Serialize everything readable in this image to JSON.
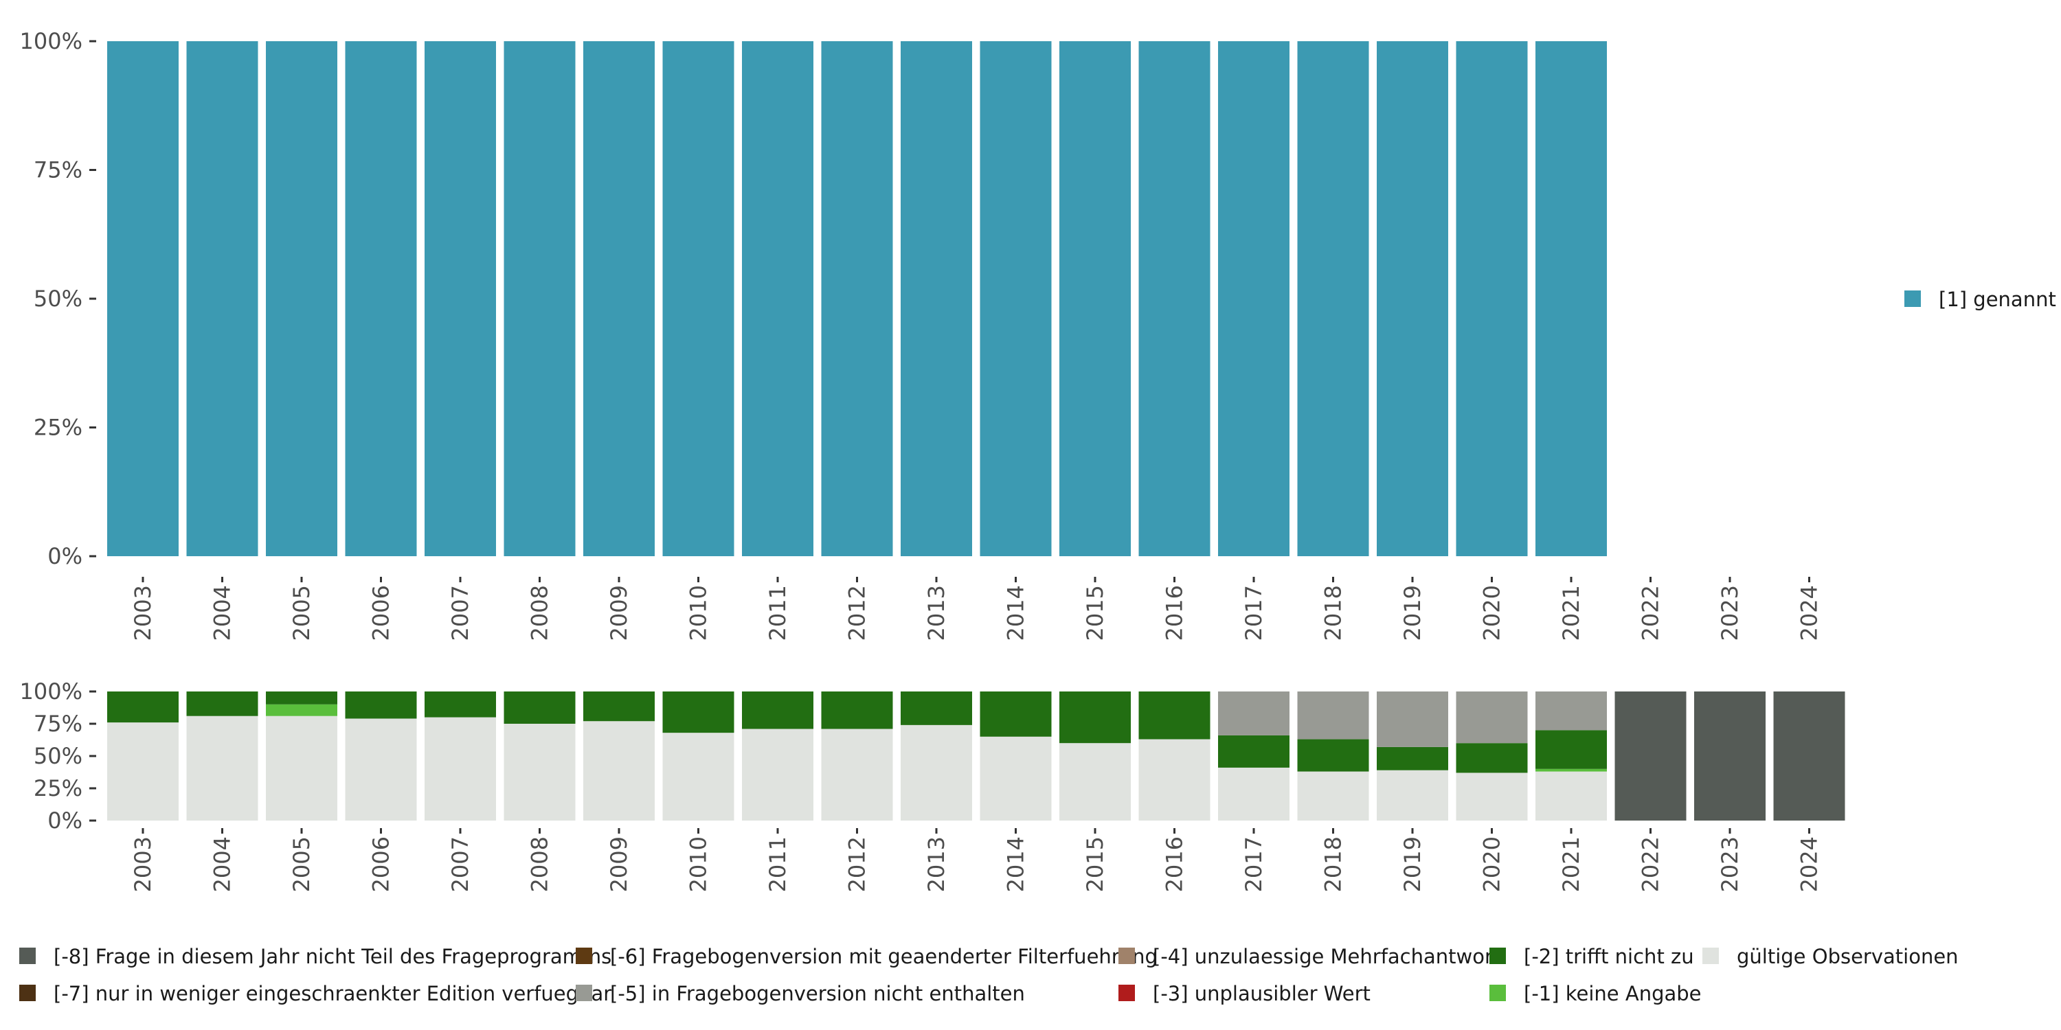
{
  "chart_data": [
    {
      "type": "bar",
      "stacked": true,
      "title": "",
      "xlabel": "",
      "ylabel": "",
      "ylim": [
        0,
        100
      ],
      "y_ticks": [
        "0%",
        "25%",
        "50%",
        "75%",
        "100%"
      ],
      "categories": [
        "2003",
        "2004",
        "2005",
        "2006",
        "2007",
        "2008",
        "2009",
        "2010",
        "2011",
        "2012",
        "2013",
        "2014",
        "2015",
        "2016",
        "2017",
        "2018",
        "2019",
        "2020",
        "2021",
        "2022",
        "2023",
        "2024"
      ],
      "series": [
        {
          "name": "[1] genannt",
          "color": "#3c9ab2",
          "values": [
            100,
            100,
            100,
            100,
            100,
            100,
            100,
            100,
            100,
            100,
            100,
            100,
            100,
            100,
            100,
            100,
            100,
            100,
            100,
            null,
            null,
            null
          ]
        }
      ],
      "legend": {
        "position": "right",
        "items": [
          {
            "label": "[1] genannt",
            "color": "#3c9ab2"
          }
        ]
      }
    },
    {
      "type": "bar",
      "stacked": true,
      "title": "",
      "xlabel": "",
      "ylabel": "",
      "ylim": [
        0,
        100
      ],
      "y_ticks": [
        "0%",
        "25%",
        "50%",
        "75%",
        "100%"
      ],
      "categories": [
        "2003",
        "2004",
        "2005",
        "2006",
        "2007",
        "2008",
        "2009",
        "2010",
        "2011",
        "2012",
        "2013",
        "2014",
        "2015",
        "2016",
        "2017",
        "2018",
        "2019",
        "2020",
        "2021",
        "2022",
        "2023",
        "2024"
      ],
      "series": [
        {
          "name": "gültige Observationen",
          "color": "#e0e3df",
          "values": [
            76,
            81,
            81,
            79,
            80,
            75,
            77,
            68,
            71,
            71,
            74,
            65,
            60,
            63,
            41,
            38,
            39,
            37,
            38,
            0,
            0,
            0
          ]
        },
        {
          "name": "[-1] keine Angabe",
          "color": "#5abe3c",
          "values": [
            0,
            0,
            9,
            0,
            0,
            0,
            0,
            0,
            0,
            0,
            0,
            0,
            0,
            0,
            0,
            0,
            0,
            0,
            2,
            0,
            0,
            0
          ]
        },
        {
          "name": "[-2] trifft nicht zu",
          "color": "#226e12",
          "values": [
            24,
            19,
            10,
            21,
            20,
            25,
            23,
            32,
            29,
            29,
            26,
            35,
            40,
            37,
            25,
            25,
            18,
            23,
            30,
            0,
            0,
            0
          ]
        },
        {
          "name": "[-5] in Fragebogenversion nicht enthalten",
          "color": "#989a94",
          "values": [
            0,
            0,
            0,
            0,
            0,
            0,
            0,
            0,
            0,
            0,
            0,
            0,
            0,
            0,
            34,
            37,
            43,
            40,
            30,
            0,
            0,
            0
          ]
        },
        {
          "name": "[-8] Frage in diesem Jahr nicht Teil des Frageprogramms",
          "color": "#555b56",
          "values": [
            0,
            0,
            0,
            0,
            0,
            0,
            0,
            0,
            0,
            0,
            0,
            0,
            0,
            0,
            0,
            0,
            0,
            0,
            0,
            100,
            100,
            100
          ]
        }
      ],
      "legend": {
        "position": "bottom",
        "items": [
          {
            "label": "[-8] Frage in diesem Jahr nicht Teil des Frageprogramms",
            "color": "#555b56"
          },
          {
            "label": "[-7] nur in weniger eingeschraenkter Edition verfuegbar",
            "color": "#4d3114"
          },
          {
            "label": "[-6] Fragebogenversion mit geaenderter Filterfuehrung",
            "color": "#5e3a12"
          },
          {
            "label": "[-5] in Fragebogenversion nicht enthalten",
            "color": "#989a94"
          },
          {
            "label": "[-4] unzulaessige Mehrfachantwort",
            "color": "#a0826a"
          },
          {
            "label": "[-3] unplausibler Wert",
            "color": "#b01c1c"
          },
          {
            "label": "[-2] trifft nicht zu",
            "color": "#226e12"
          },
          {
            "label": "[-1] keine Angabe",
            "color": "#5abe3c"
          },
          {
            "label": "gültige Observationen",
            "color": "#e0e3df"
          }
        ]
      }
    }
  ]
}
